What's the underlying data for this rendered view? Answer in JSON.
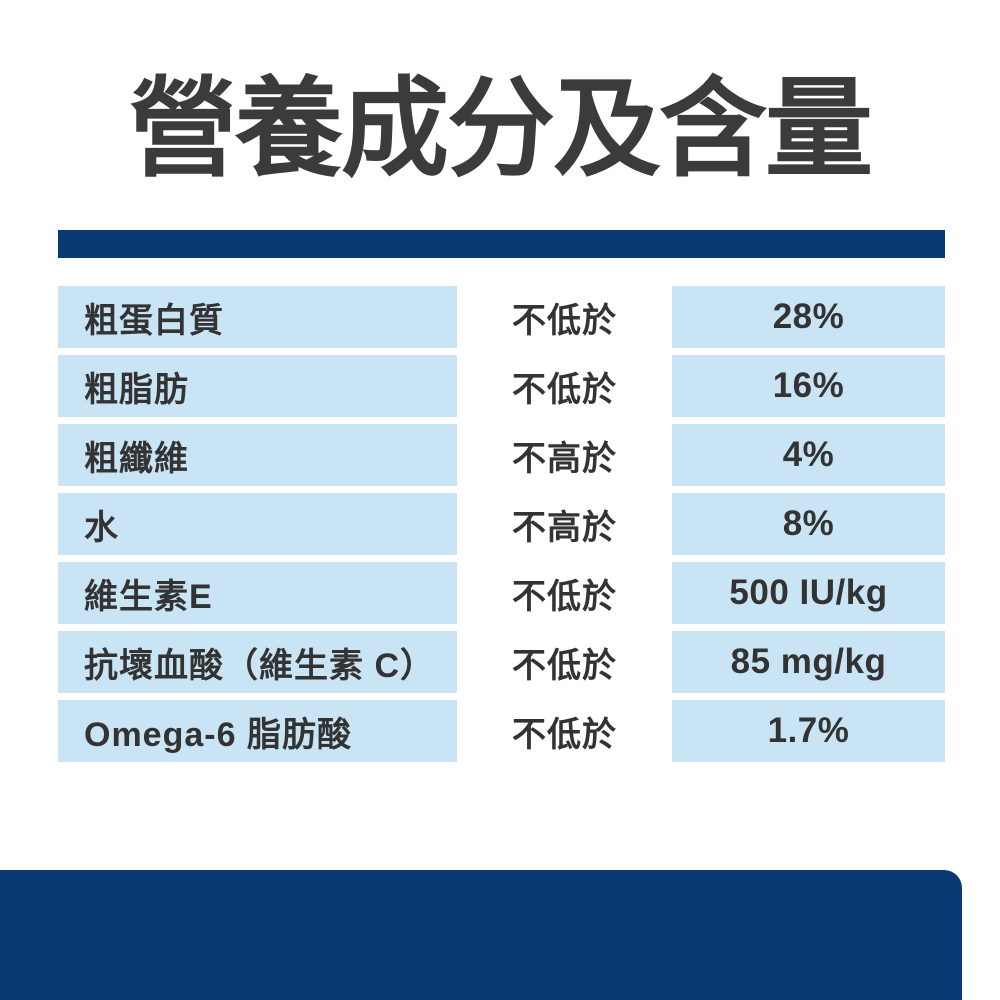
{
  "page": {
    "title": "營養成分及含量",
    "colors": {
      "navy": "#0a3a73",
      "light_blue": "#c9e4f4",
      "text_dark": "#3b3b3b"
    }
  },
  "table": {
    "rows": [
      {
        "label": "粗蛋白質",
        "qualifier": "不低於",
        "value": "28%"
      },
      {
        "label": "粗脂肪",
        "qualifier": "不低於",
        "value": "16%"
      },
      {
        "label": "粗纖維",
        "qualifier": "不高於",
        "value": "4%"
      },
      {
        "label": "水",
        "qualifier": "不高於",
        "value": "8%"
      },
      {
        "label": "維生素E",
        "qualifier": "不低於",
        "value": "500 IU/kg"
      },
      {
        "label": "抗壞血酸（維生素 C）",
        "qualifier": "不低於",
        "value": "85 mg/kg"
      },
      {
        "label": "Omega-6 脂肪酸",
        "qualifier": "不低於",
        "value": "1.7%"
      }
    ]
  }
}
